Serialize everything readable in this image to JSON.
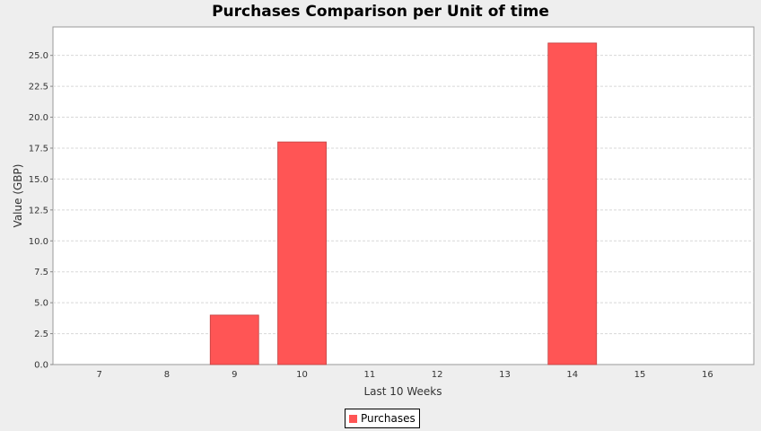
{
  "colors": {
    "bar": "#ff5555",
    "bar_outline": "#c04040",
    "grid": "#d8d8d8",
    "plot_bg": "#ffffff",
    "page_bg": "#eeeeee"
  },
  "chart_data": {
    "type": "bar",
    "title": "Purchases Comparison per Unit of time",
    "xlabel": "Last 10 Weeks",
    "ylabel": "Value (GBP)",
    "categories": [
      "7",
      "8",
      "9",
      "10",
      "11",
      "12",
      "13",
      "14",
      "15",
      "16"
    ],
    "series": [
      {
        "name": "Purchases",
        "values": [
          0,
          0,
          4,
          18,
          0,
          0,
          0,
          26,
          0,
          0
        ]
      }
    ],
    "ylim": [
      0,
      27.3
    ],
    "yticks": [
      "0.0",
      "2.5",
      "5.0",
      "7.5",
      "10.0",
      "12.5",
      "15.0",
      "17.5",
      "20.0",
      "22.5",
      "25.0"
    ],
    "grid": true,
    "legend_position": "bottom"
  }
}
